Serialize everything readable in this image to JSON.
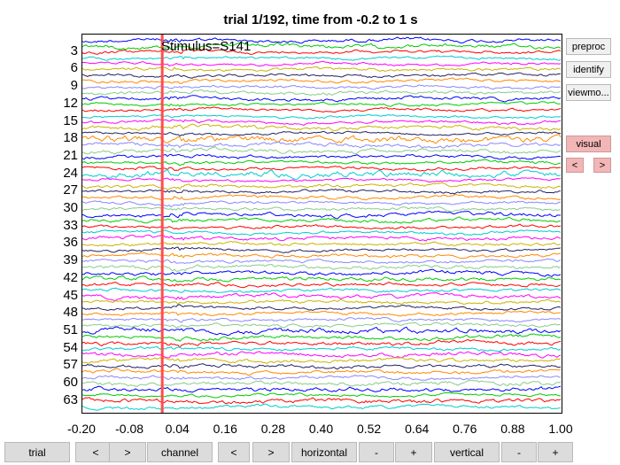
{
  "title": "trial 1/192, time from -0.2 to 1 s",
  "event_label": "Stimulus=S141",
  "side_buttons": {
    "preproc": "preproc",
    "identify": "identify",
    "viewmode": "viewmo...",
    "visual": "visual",
    "prev": "<",
    "next": ">"
  },
  "bottom_buttons": {
    "trial": "trial",
    "trial_prev": "<",
    "trial_next": ">",
    "channel": "channel",
    "channel_prev": "<",
    "channel_next": ">",
    "horizontal": "horizontal",
    "horizontal_minus": "-",
    "horizontal_plus": "+",
    "vertical": "vertical",
    "vertical_minus": "-",
    "vertical_plus": "+"
  },
  "colors": {
    "marker": "#ff4d4d",
    "traces": [
      "#0000ff",
      "#00cc00",
      "#ff0000",
      "#00cccc",
      "#ff00ff",
      "#c8b400",
      "#222266",
      "#ff8800",
      "#8888ff",
      "#88cc88"
    ]
  },
  "chart_data": {
    "type": "line",
    "title": "trial 1/192, time from -0.2 to 1 s",
    "xlabel": "",
    "ylabel": "",
    "xlim": [
      -0.2,
      1.0
    ],
    "x_ticks": [
      "-0.20",
      "-0.08",
      "0.04",
      "0.16",
      "0.28",
      "0.40",
      "0.52",
      "0.64",
      "0.76",
      "0.88",
      "1.00"
    ],
    "y_ticks": [
      "3",
      "6",
      "9",
      "12",
      "15",
      "18",
      "21",
      "24",
      "27",
      "30",
      "33",
      "36",
      "39",
      "42",
      "45",
      "48",
      "51",
      "54",
      "57",
      "60",
      "63"
    ],
    "channel_count": 64,
    "event_marker": {
      "time": 0.0,
      "label": "Stimulus=S141"
    }
  }
}
